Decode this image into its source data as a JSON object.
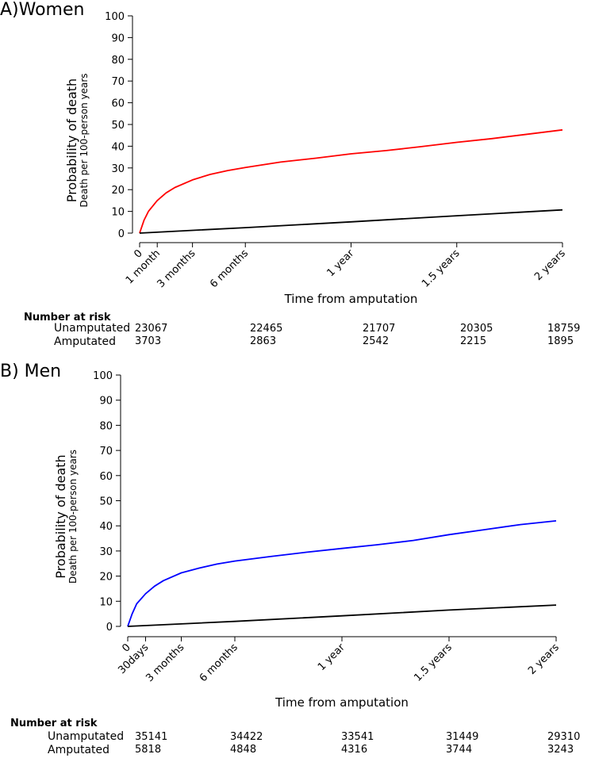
{
  "chart_data": [
    {
      "panel_label": "A)Women",
      "type": "line",
      "ylabel": "Probability of death",
      "ylabel_sub": "Death per 100-person years",
      "xlabel": "Time from amputation",
      "ylim": [
        0,
        100
      ],
      "yticks": [
        0,
        10,
        20,
        30,
        40,
        50,
        60,
        70,
        80,
        90,
        100
      ],
      "xlim_months": [
        0,
        24
      ],
      "xticks": [
        {
          "label": "0",
          "months": 0
        },
        {
          "label": "1 month",
          "months": 1
        },
        {
          "label": "3 months",
          "months": 3
        },
        {
          "label": "6 months",
          "months": 6
        },
        {
          "label": "1 year",
          "months": 12
        },
        {
          "label": "1.5 years",
          "months": 18
        },
        {
          "label": "2 years",
          "months": 24
        }
      ],
      "series": [
        {
          "name": "Amputated",
          "color": "#ff0000",
          "points": [
            [
              0,
              0
            ],
            [
              0.25,
              6
            ],
            [
              0.5,
              10
            ],
            [
              1,
              15
            ],
            [
              1.5,
              18.5
            ],
            [
              2,
              21
            ],
            [
              3,
              24.5
            ],
            [
              4,
              27
            ],
            [
              5,
              28.8
            ],
            [
              6,
              30.2
            ],
            [
              8,
              32.7
            ],
            [
              10,
              34.5
            ],
            [
              12,
              36.5
            ],
            [
              14,
              38
            ],
            [
              16,
              39.8
            ],
            [
              18,
              41.8
            ],
            [
              20,
              43.5
            ],
            [
              22,
              45.5
            ],
            [
              24,
              47.5
            ]
          ]
        },
        {
          "name": "Unamputated",
          "color": "#000000",
          "points": [
            [
              0,
              0
            ],
            [
              6,
              2.5
            ],
            [
              12,
              5.2
            ],
            [
              18,
              8
            ],
            [
              24,
              10.7
            ]
          ]
        }
      ],
      "risk_table": {
        "header": "Number at risk",
        "rows": [
          {
            "label": "Unamputated",
            "values": [
              "23067",
              "22465",
              "21707",
              "20305",
              "18759"
            ]
          },
          {
            "label": "Amputated",
            "values": [
              "3703",
              "2863",
              "2542",
              "2215",
              "1895"
            ]
          }
        ]
      }
    },
    {
      "panel_label": "B) Men",
      "type": "line",
      "ylabel": "Probability of death",
      "ylabel_sub": "Death per 100-person years",
      "xlabel": "Time from amputation",
      "ylim": [
        0,
        100
      ],
      "yticks": [
        0,
        10,
        20,
        30,
        40,
        50,
        60,
        70,
        80,
        90,
        100
      ],
      "xlim_months": [
        0,
        24
      ],
      "xticks": [
        {
          "label": "0",
          "months": 0
        },
        {
          "label": "30days",
          "months": 1
        },
        {
          "label": "3 months",
          "months": 3
        },
        {
          "label": "6 months",
          "months": 6
        },
        {
          "label": "1 year",
          "months": 12
        },
        {
          "label": "1.5 years",
          "months": 18
        },
        {
          "label": "2 years",
          "months": 24
        }
      ],
      "series": [
        {
          "name": "Amputated",
          "color": "#0000ff",
          "points": [
            [
              0,
              0
            ],
            [
              0.25,
              5
            ],
            [
              0.5,
              9
            ],
            [
              1,
              13
            ],
            [
              1.5,
              16
            ],
            [
              2,
              18.2
            ],
            [
              3,
              21.3
            ],
            [
              4,
              23.2
            ],
            [
              5,
              24.8
            ],
            [
              6,
              26
            ],
            [
              8,
              27.8
            ],
            [
              10,
              29.5
            ],
            [
              12,
              31
            ],
            [
              14,
              32.5
            ],
            [
              16,
              34.2
            ],
            [
              18,
              36.5
            ],
            [
              20,
              38.5
            ],
            [
              22,
              40.5
            ],
            [
              24,
              42
            ]
          ]
        },
        {
          "name": "Unamputated",
          "color": "#000000",
          "points": [
            [
              0,
              0
            ],
            [
              6,
              2
            ],
            [
              12,
              4.2
            ],
            [
              18,
              6.5
            ],
            [
              24,
              8.5
            ]
          ]
        }
      ],
      "risk_table": {
        "header": "Number at risk",
        "rows": [
          {
            "label": "Unamputated",
            "values": [
              "35141",
              "34422",
              "33541",
              "31449",
              "29310"
            ]
          },
          {
            "label": "Amputated",
            "values": [
              "5818",
              "4848",
              "4316",
              "3744",
              "3243"
            ]
          }
        ]
      }
    }
  ]
}
